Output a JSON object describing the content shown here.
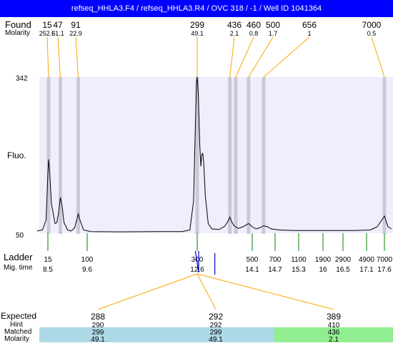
{
  "title": "refseq_HHLA3.F4 / refseq_HHLA3.R4 / OVC 318 / -1 / Well ID 1041364",
  "labels": {
    "found": "Found",
    "molarity": "Molarity",
    "fluo": "Fluo.",
    "ladder": "Ladder",
    "mig_time": "Mig. time",
    "expected": "Expected",
    "hint": "Hint",
    "matched": "Matched",
    "molarity_bottom": "Molarity"
  },
  "colors": {
    "title_bg": "#0000ff",
    "plot_bg": "#eeeefc",
    "band": "#c9c9d8",
    "connector": "#ffa500",
    "ladder_tick": "#008000",
    "marker": "#0000cd",
    "matched_blue": "#add8e6",
    "matched_green": "#90ee90"
  },
  "chart_data": {
    "type": "line",
    "ylim": [
      50,
      342
    ],
    "y_ticks": [
      "342",
      "50"
    ],
    "found_peaks": [
      {
        "size": "15",
        "molarity": "252.5",
        "mig_time": 8.52
      },
      {
        "size": "47",
        "molarity": "61.1",
        "mig_time": 8.85
      },
      {
        "size": "91",
        "molarity": "22.9",
        "mig_time": 9.35
      },
      {
        "size": "299",
        "molarity": "49.1",
        "mig_time": 12.6
      },
      {
        "size": "436",
        "molarity": "2.1",
        "mig_time": 13.49
      },
      {
        "size": "460",
        "molarity": "0.8",
        "mig_time": 13.65
      },
      {
        "size": "500",
        "molarity": "1.7",
        "mig_time": 14.0
      },
      {
        "size": "656",
        "molarity": "1",
        "mig_time": 14.4
      },
      {
        "size": "7000",
        "molarity": "0.5",
        "mig_time": 17.6
      }
    ],
    "ladder": [
      {
        "size": "15",
        "time": "8.5"
      },
      {
        "size": "100",
        "time": "9.6"
      },
      {
        "size": "300",
        "time": "12.6"
      },
      {
        "size": "500",
        "time": "14.1"
      },
      {
        "size": "700",
        "time": "14.7"
      },
      {
        "size": "1100",
        "time": "15.3"
      },
      {
        "size": "1900",
        "time": "16"
      },
      {
        "size": "2900",
        "time": "16.5"
      },
      {
        "size": "4900",
        "time": "17.1"
      },
      {
        "size": "7000",
        "time": "17.6"
      }
    ],
    "trace": [
      [
        8.2,
        54
      ],
      [
        8.35,
        56
      ],
      [
        8.45,
        75
      ],
      [
        8.5,
        160
      ],
      [
        8.52,
        188
      ],
      [
        8.55,
        165
      ],
      [
        8.6,
        105
      ],
      [
        8.7,
        68
      ],
      [
        8.75,
        70
      ],
      [
        8.8,
        88
      ],
      [
        8.85,
        117
      ],
      [
        8.9,
        100
      ],
      [
        8.95,
        70
      ],
      [
        9.05,
        56
      ],
      [
        9.15,
        54
      ],
      [
        9.25,
        60
      ],
      [
        9.32,
        78
      ],
      [
        9.35,
        86
      ],
      [
        9.4,
        74
      ],
      [
        9.5,
        56
      ],
      [
        9.7,
        53
      ],
      [
        10.5,
        52.5
      ],
      [
        11.5,
        53
      ],
      [
        12.2,
        53
      ],
      [
        12.4,
        56
      ],
      [
        12.5,
        110
      ],
      [
        12.55,
        250
      ],
      [
        12.58,
        330
      ],
      [
        12.6,
        342
      ],
      [
        12.63,
        310
      ],
      [
        12.67,
        215
      ],
      [
        12.7,
        175
      ],
      [
        12.72,
        195
      ],
      [
        12.75,
        200
      ],
      [
        12.78,
        180
      ],
      [
        12.82,
        120
      ],
      [
        12.9,
        68
      ],
      [
        13.0,
        58
      ],
      [
        13.2,
        57
      ],
      [
        13.35,
        63
      ],
      [
        13.42,
        70
      ],
      [
        13.49,
        80
      ],
      [
        13.55,
        70
      ],
      [
        13.6,
        64
      ],
      [
        13.65,
        62
      ],
      [
        13.72,
        59
      ],
      [
        13.85,
        62
      ],
      [
        14.0,
        68
      ],
      [
        14.1,
        62
      ],
      [
        14.2,
        58
      ],
      [
        14.3,
        60
      ],
      [
        14.4,
        64
      ],
      [
        14.5,
        62
      ],
      [
        14.6,
        58
      ],
      [
        14.8,
        56
      ],
      [
        15.2,
        55
      ],
      [
        15.8,
        55
      ],
      [
        16.3,
        55
      ],
      [
        16.8,
        55
      ],
      [
        17.2,
        56
      ],
      [
        17.4,
        62
      ],
      [
        17.5,
        72
      ],
      [
        17.6,
        82
      ],
      [
        17.7,
        62
      ],
      [
        17.8,
        58
      ]
    ],
    "expected": [
      {
        "expected": "288",
        "hint": "290",
        "matched": "299",
        "molarity": "49.1"
      },
      {
        "expected": "292",
        "hint": "292",
        "matched": "299",
        "molarity": "49.1"
      },
      {
        "expected": "389",
        "hint": "410",
        "matched": "436",
        "molarity": "2.1"
      }
    ],
    "markers": [
      12.55,
      12.64,
      13.08
    ]
  }
}
